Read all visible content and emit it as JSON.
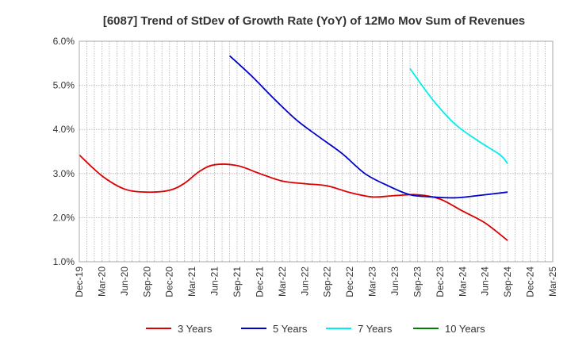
{
  "chart_data": {
    "type": "line",
    "title": "[6087]  Trend of StDev of Growth Rate (YoY) of 12Mo Mov Sum of Revenues",
    "xlabel": "",
    "ylabel": "",
    "ylim": [
      1.0,
      6.0
    ],
    "yticks": [
      "1.0%",
      "2.0%",
      "3.0%",
      "4.0%",
      "5.0%",
      "6.0%"
    ],
    "ytick_values": [
      1.0,
      2.0,
      3.0,
      4.0,
      5.0,
      6.0
    ],
    "xticks": [
      "Dec-19",
      "Mar-20",
      "Jun-20",
      "Sep-20",
      "Dec-20",
      "Mar-21",
      "Jun-21",
      "Sep-21",
      "Dec-21",
      "Mar-22",
      "Jun-22",
      "Sep-22",
      "Dec-22",
      "Mar-23",
      "Jun-23",
      "Sep-23",
      "Dec-23",
      "Mar-24",
      "Jun-24",
      "Sep-24",
      "Dec-24",
      "Mar-25"
    ],
    "x_range": [
      0,
      63
    ],
    "grid": true,
    "legend_position": "bottom",
    "series": [
      {
        "name": "3 Years",
        "color": "#dd0000",
        "points": [
          [
            0,
            3.42
          ],
          [
            3,
            2.95
          ],
          [
            6,
            2.65
          ],
          [
            9,
            2.58
          ],
          [
            12,
            2.62
          ],
          [
            14,
            2.78
          ],
          [
            16,
            3.05
          ],
          [
            18,
            3.2
          ],
          [
            21,
            3.18
          ],
          [
            24,
            3.0
          ],
          [
            27,
            2.83
          ],
          [
            30,
            2.77
          ],
          [
            33,
            2.72
          ],
          [
            36,
            2.57
          ],
          [
            39,
            2.47
          ],
          [
            42,
            2.5
          ],
          [
            45,
            2.52
          ],
          [
            48,
            2.42
          ],
          [
            51,
            2.15
          ],
          [
            54,
            1.88
          ],
          [
            57,
            1.48
          ]
        ]
      },
      {
        "name": "5 Years",
        "color": "#0000cc",
        "points": [
          [
            20,
            5.67
          ],
          [
            23,
            5.2
          ],
          [
            26,
            4.68
          ],
          [
            29,
            4.2
          ],
          [
            32,
            3.82
          ],
          [
            35,
            3.45
          ],
          [
            38,
            3.0
          ],
          [
            41,
            2.73
          ],
          [
            44,
            2.52
          ],
          [
            47,
            2.47
          ],
          [
            50,
            2.45
          ],
          [
            53,
            2.5
          ],
          [
            57,
            2.58
          ]
        ]
      },
      {
        "name": "7 Years",
        "color": "#00eeee",
        "points": [
          [
            44,
            5.38
          ],
          [
            47,
            4.68
          ],
          [
            50,
            4.12
          ],
          [
            53,
            3.75
          ],
          [
            56,
            3.42
          ],
          [
            57,
            3.22
          ]
        ]
      },
      {
        "name": "10 Years",
        "color": "#008000",
        "points": []
      }
    ]
  }
}
